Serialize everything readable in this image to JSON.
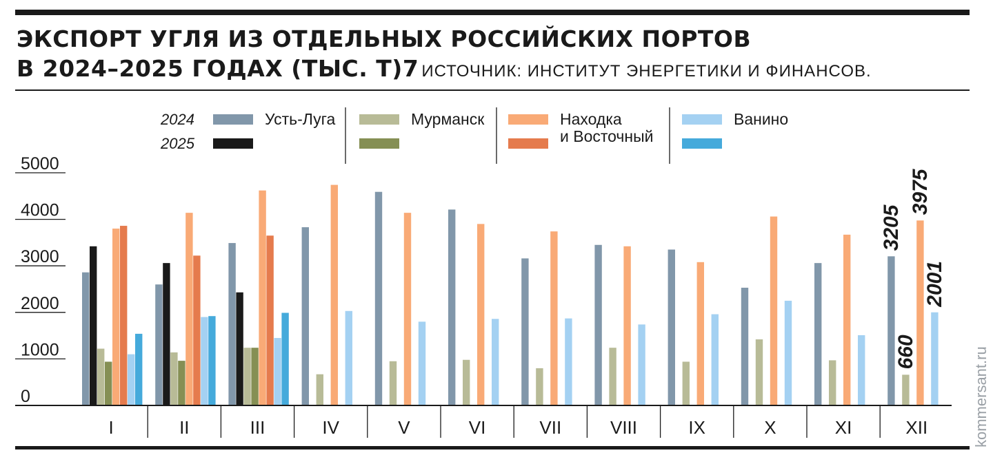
{
  "header": {
    "title_line1": "ЭКСПОРТ УГЛЯ ИЗ ОТДЕЛЬНЫХ РОССИЙСКИХ ПОРТОВ",
    "title_line2": "В 2024–2025 ГОДАХ (ТЫС. Т)7",
    "source": "ИСТОЧНИК: ИНСТИТУТ ЭНЕРГЕТИКИ И ФИНАНСОВ."
  },
  "watermark": "kommersant.ru",
  "chart_data": {
    "type": "bar",
    "title": "ЭКСПОРТ УГЛЯ ИЗ ОТДЕЛЬНЫХ РОССИЙСКИХ ПОРТОВ В 2024–2025 ГОДАХ (ТЫС. Т)",
    "categories": [
      "I",
      "II",
      "III",
      "IV",
      "V",
      "VI",
      "VII",
      "VIII",
      "IX",
      "X",
      "XI",
      "XII"
    ],
    "year_labels": [
      "2024",
      "2025"
    ],
    "yticks": [
      0,
      1000,
      2000,
      3000,
      4000,
      5000
    ],
    "ylim": [
      0,
      5000
    ],
    "grid": false,
    "legend_position": "top",
    "ports": [
      {
        "name": "Усть-Луга",
        "color_2024": "#8197aa",
        "color_2025": "#1a1a1a",
        "values_2024": [
          2860,
          2600,
          3490,
          3830,
          4590,
          4210,
          3160,
          3450,
          3350,
          2530,
          3060,
          3205
        ],
        "values_2025": [
          3420,
          3060,
          2430,
          null,
          null,
          null,
          null,
          null,
          null,
          null,
          null,
          null
        ]
      },
      {
        "name": "Мурманск",
        "color_2024": "#b8bb97",
        "color_2025": "#858f54",
        "values_2024": [
          1220,
          1140,
          1240,
          670,
          950,
          980,
          800,
          1240,
          940,
          1420,
          970,
          660
        ],
        "values_2025": [
          940,
          960,
          1240,
          null,
          null,
          null,
          null,
          null,
          null,
          null,
          null,
          null
        ]
      },
      {
        "name": "Находка\nи Восточный",
        "color_2024": "#f9aa76",
        "color_2025": "#e57b4d",
        "values_2024": [
          3800,
          4140,
          4620,
          4740,
          4140,
          3900,
          3740,
          3420,
          3080,
          4060,
          3670,
          3975
        ],
        "values_2025": [
          3860,
          3220,
          3650,
          null,
          null,
          null,
          null,
          null,
          null,
          null,
          null,
          null
        ]
      },
      {
        "name": "Ванино",
        "color_2024": "#a4d1f2",
        "color_2025": "#45aadb",
        "values_2024": [
          1100,
          1900,
          1450,
          2030,
          1800,
          1860,
          1870,
          1740,
          1960,
          2250,
          1510,
          2001
        ],
        "values_2025": [
          1540,
          1920,
          1990,
          null,
          null,
          null,
          null,
          null,
          null,
          null,
          null,
          null
        ]
      }
    ],
    "annotations": [
      "3205",
      "3975",
      "660",
      "2001"
    ]
  }
}
